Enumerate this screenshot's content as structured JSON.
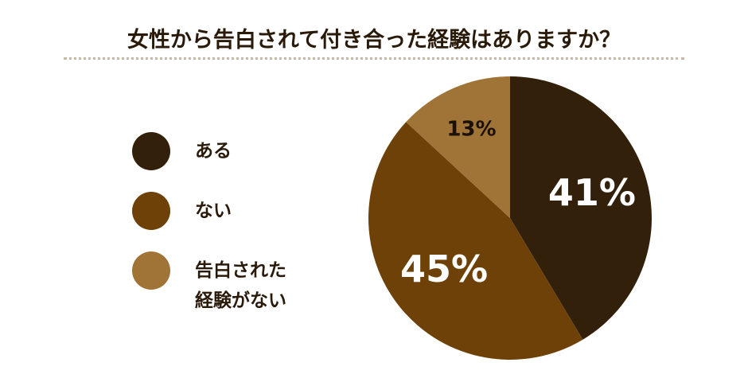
{
  "chart_data": {
    "type": "pie",
    "title": "女性から告白されて付き合った経験はありますか？",
    "categories": [
      "ある",
      "ない",
      "告白された経験がない"
    ],
    "values": [
      41,
      45,
      13
    ],
    "value_labels": [
      "41%",
      "45%",
      "13%"
    ],
    "colors": [
      "#33200a",
      "#6e4108",
      "#a07437"
    ],
    "legend": "left"
  }
}
